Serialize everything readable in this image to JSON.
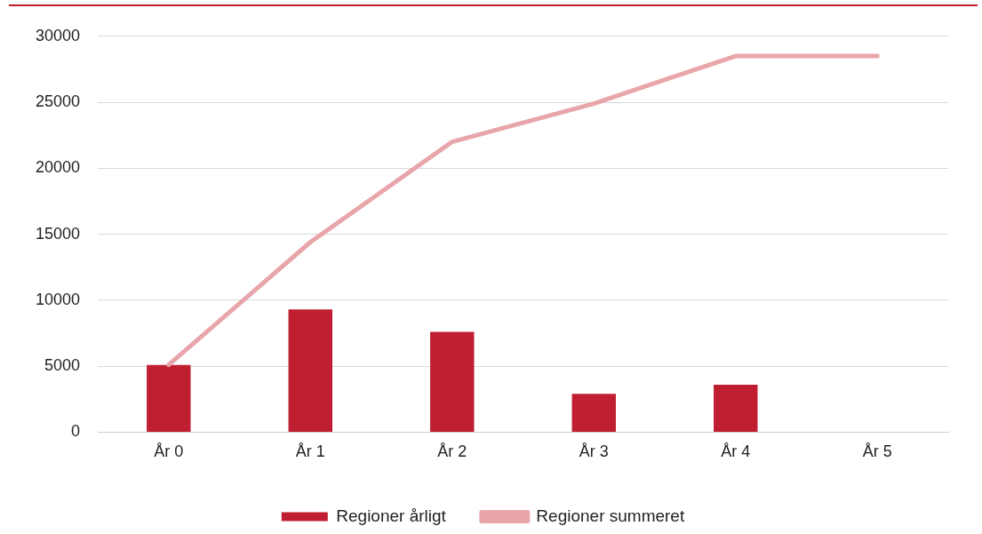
{
  "chart_data": {
    "type": "bar",
    "categories": [
      "År 0",
      "År 1",
      "År 2",
      "År 3",
      "År 4",
      "År 5"
    ],
    "series": [
      {
        "name": "Regioner årligt",
        "color": "#c01f32",
        "values": [
          5100,
          9300,
          7600,
          2900,
          3600,
          null
        ]
      },
      {
        "name": "Regioner summeret",
        "type": "line",
        "color": "#e8a5aa",
        "values": [
          5100,
          14400,
          22000,
          24900,
          28500,
          28500
        ]
      }
    ],
    "ylim": [
      0,
      30000
    ],
    "yticks": [
      0,
      5000,
      10000,
      15000,
      20000,
      25000,
      30000
    ],
    "grid": "y",
    "legend": "bottom",
    "marker": "none"
  }
}
